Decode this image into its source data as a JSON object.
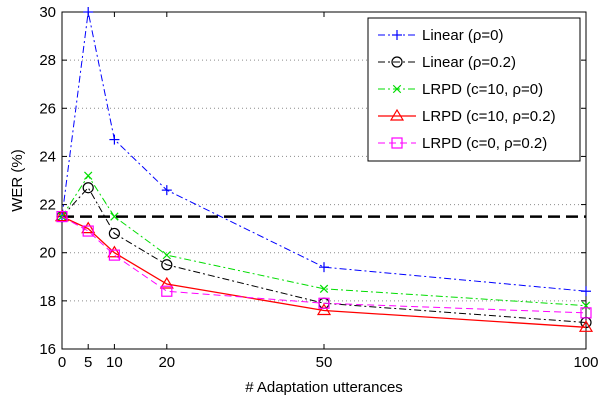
{
  "chart_data": {
    "type": "line",
    "xlabel": "# Adaptation utterances",
    "ylabel": "WER (%)",
    "xlim": [
      0,
      100
    ],
    "ylim": [
      16,
      30
    ],
    "xticks": [
      0,
      5,
      10,
      20,
      50,
      100
    ],
    "yticks": [
      16,
      18,
      20,
      22,
      24,
      26,
      28,
      30
    ],
    "grid": "horizontal dotted",
    "legend_position": "top-right",
    "baseline": {
      "y": 21.5,
      "color": "#000000",
      "style": "dashed"
    },
    "series": [
      {
        "name": "Linear (ρ=0)",
        "color": "#0000ff",
        "marker": "plus",
        "dash": "dashdot",
        "x": [
          0,
          5,
          10,
          20,
          50,
          100
        ],
        "y": [
          21.5,
          30.0,
          24.7,
          22.6,
          19.4,
          18.4
        ]
      },
      {
        "name": "Linear (ρ=0.2)",
        "color": "#000000",
        "marker": "circle",
        "dash": "dashdot",
        "x": [
          0,
          5,
          10,
          20,
          50,
          100
        ],
        "y": [
          21.5,
          22.7,
          20.8,
          19.5,
          17.9,
          17.1
        ]
      },
      {
        "name": "LRPD (c=10, ρ=0)",
        "color": "#00dd00",
        "marker": "x",
        "dash": "dashdot",
        "x": [
          0,
          5,
          10,
          20,
          50,
          100
        ],
        "y": [
          21.5,
          23.2,
          21.5,
          19.9,
          18.5,
          17.8
        ]
      },
      {
        "name": "LRPD (c=10, ρ=0.2)",
        "color": "#ff0000",
        "marker": "triangle",
        "dash": "solid",
        "x": [
          0,
          5,
          10,
          20,
          50,
          100
        ],
        "y": [
          21.5,
          21.0,
          20.0,
          18.7,
          17.6,
          16.9
        ]
      },
      {
        "name": "LRPD (c=0, ρ=0.2)",
        "color": "#ff00ff",
        "marker": "square",
        "dash": "dashed",
        "x": [
          0,
          5,
          10,
          20,
          50,
          100
        ],
        "y": [
          21.5,
          20.9,
          19.9,
          18.4,
          17.9,
          17.5
        ]
      }
    ]
  }
}
